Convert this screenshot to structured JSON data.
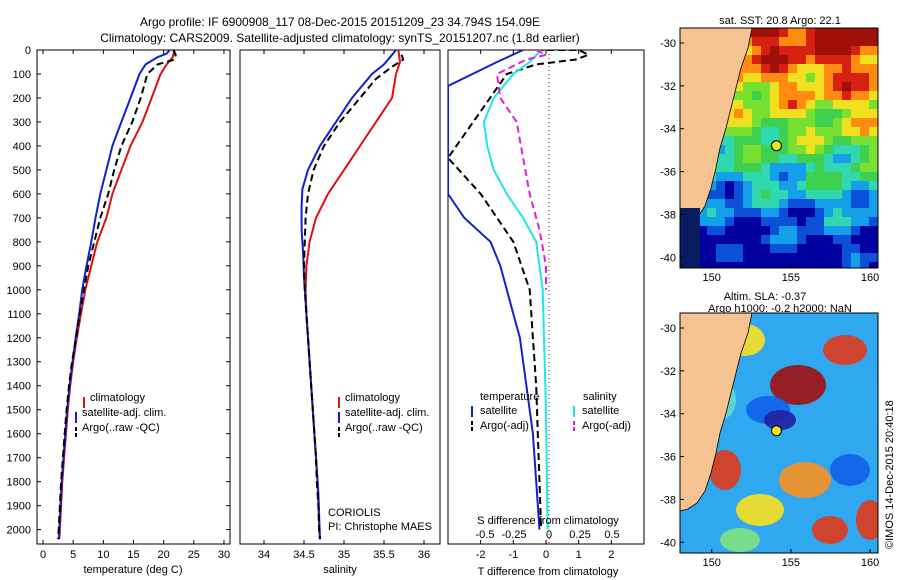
{
  "header": {
    "line1": "Argo profile: IF 6900908_117 08-Dec-2015 20151209_23 34.794S 154.09E",
    "line2": "Climatology: CARS2009. Satellite-adjusted climatology: synTS_20151207.nc (1.8d earlier)"
  },
  "colors": {
    "climatology": "#dd1111",
    "satellite": "#1122cc",
    "argo": "#000000",
    "sal_satellite": "#22e5e5",
    "sal_argo": "#e020e0",
    "land": "#f7c491",
    "marker": "#f0e020"
  },
  "depth_axis": {
    "ticks": [
      "0",
      "100",
      "200",
      "300",
      "400",
      "500",
      "600",
      "700",
      "800",
      "900",
      "1000",
      "1100",
      "1200",
      "1300",
      "1400",
      "1500",
      "1600",
      "1700",
      "1800",
      "1900",
      "2000"
    ]
  },
  "chart_data": [
    {
      "type": "line",
      "xlabel": "temperature (deg C)",
      "ylabel": "",
      "xlim": [
        -1,
        31
      ],
      "ylim": [
        2060,
        0
      ],
      "xticks": [
        "0",
        "5",
        "10",
        "15",
        "20",
        "25",
        "30"
      ],
      "legend": [
        "climatology",
        "satellite-adj. clim.",
        "Argo(..raw -QC)"
      ],
      "series": [
        {
          "name": "climatology",
          "color_key": "climatology",
          "dash": false,
          "points": [
            [
              21.8,
              0
            ],
            [
              21.5,
              30
            ],
            [
              20.5,
              60
            ],
            [
              19.5,
              100
            ],
            [
              18,
              200
            ],
            [
              16.5,
              300
            ],
            [
              14.5,
              400
            ],
            [
              13,
              500
            ],
            [
              11.5,
              600
            ],
            [
              10.5,
              700
            ],
            [
              9,
              800
            ],
            [
              8,
              900
            ],
            [
              7,
              1000
            ],
            [
              6.3,
              1100
            ],
            [
              5.6,
              1200
            ],
            [
              5,
              1300
            ],
            [
              4.5,
              1400
            ],
            [
              4.1,
              1500
            ],
            [
              3.8,
              1600
            ],
            [
              3.5,
              1700
            ],
            [
              3.2,
              1800
            ],
            [
              3,
              1900
            ],
            [
              2.8,
              2000
            ],
            [
              2.7,
              2040
            ]
          ]
        },
        {
          "name": "satellite-adj. clim.",
          "color_key": "satellite",
          "dash": false,
          "points": [
            [
              21,
              0
            ],
            [
              20.5,
              15
            ],
            [
              19,
              30
            ],
            [
              17,
              60
            ],
            [
              16,
              100
            ],
            [
              14.5,
              200
            ],
            [
              13,
              300
            ],
            [
              11.5,
              400
            ],
            [
              10.5,
              500
            ],
            [
              9.5,
              600
            ],
            [
              8.7,
              700
            ],
            [
              8,
              800
            ],
            [
              7.2,
              900
            ],
            [
              6.5,
              1000
            ],
            [
              6,
              1100
            ],
            [
              5.4,
              1200
            ],
            [
              4.9,
              1300
            ],
            [
              4.4,
              1400
            ],
            [
              4,
              1500
            ],
            [
              3.7,
              1600
            ],
            [
              3.4,
              1700
            ],
            [
              3.1,
              1800
            ],
            [
              2.9,
              1900
            ],
            [
              2.7,
              2000
            ],
            [
              2.6,
              2040
            ]
          ]
        },
        {
          "name": "Argo(..raw -QC)",
          "color_key": "argo",
          "dash": true,
          "points": [
            [
              21.6,
              0
            ],
            [
              22,
              20
            ],
            [
              21.8,
              40
            ],
            [
              19,
              60
            ],
            [
              17.3,
              100
            ],
            [
              16.2,
              200
            ],
            [
              14.8,
              300
            ],
            [
              13,
              400
            ],
            [
              11.8,
              500
            ],
            [
              10.8,
              600
            ],
            [
              9.5,
              700
            ],
            [
              8.5,
              800
            ],
            [
              7.5,
              900
            ],
            [
              6.8,
              1000
            ],
            [
              6.1,
              1100
            ],
            [
              5.5,
              1200
            ],
            [
              4.8,
              1300
            ],
            [
              4.3,
              1400
            ],
            [
              3.9,
              1500
            ],
            [
              3.6,
              1600
            ],
            [
              3.3,
              1700
            ],
            [
              3,
              1800
            ],
            [
              2.8,
              1900
            ],
            [
              2.6,
              2000
            ],
            [
              2.5,
              2040
            ]
          ]
        }
      ]
    },
    {
      "type": "line",
      "xlabel": "salinity",
      "ylabel": "",
      "xlim": [
        33.7,
        36.2
      ],
      "ylim": [
        2060,
        0
      ],
      "xticks": [
        "34",
        "34.5",
        "35",
        "35.5",
        "36"
      ],
      "legend": [
        "climatology",
        "satellite-adj. clim.",
        "Argo(..raw -QC)"
      ],
      "annotation": [
        "CORIOLIS",
        "PI: Christophe MAES"
      ],
      "series": [
        {
          "name": "climatology",
          "color_key": "climatology",
          "dash": false,
          "points": [
            [
              35.68,
              0
            ],
            [
              35.7,
              50
            ],
            [
              35.65,
              100
            ],
            [
              35.6,
              200
            ],
            [
              35.4,
              300
            ],
            [
              35.2,
              400
            ],
            [
              35,
              500
            ],
            [
              34.8,
              600
            ],
            [
              34.65,
              700
            ],
            [
              34.57,
              800
            ],
            [
              34.53,
              900
            ],
            [
              34.52,
              1000
            ],
            [
              34.53,
              1100
            ],
            [
              34.55,
              1200
            ],
            [
              34.57,
              1300
            ],
            [
              34.59,
              1400
            ],
            [
              34.61,
              1500
            ],
            [
              34.63,
              1600
            ],
            [
              34.65,
              1700
            ],
            [
              34.67,
              1800
            ],
            [
              34.68,
              1900
            ],
            [
              34.69,
              2000
            ],
            [
              34.7,
              2040
            ]
          ]
        },
        {
          "name": "satellite-adj. clim.",
          "color_key": "satellite",
          "dash": false,
          "points": [
            [
              35.65,
              0
            ],
            [
              35.6,
              20
            ],
            [
              35.5,
              60
            ],
            [
              35.35,
              100
            ],
            [
              35.1,
              200
            ],
            [
              34.9,
              300
            ],
            [
              34.7,
              400
            ],
            [
              34.55,
              500
            ],
            [
              34.48,
              580
            ],
            [
              34.47,
              650
            ],
            [
              34.47,
              750
            ],
            [
              34.49,
              850
            ],
            [
              34.5,
              950
            ],
            [
              34.52,
              1050
            ],
            [
              34.54,
              1150
            ],
            [
              34.56,
              1250
            ],
            [
              34.58,
              1350
            ],
            [
              34.6,
              1450
            ],
            [
              34.62,
              1550
            ],
            [
              34.64,
              1650
            ],
            [
              34.66,
              1750
            ],
            [
              34.68,
              1850
            ],
            [
              34.69,
              1950
            ],
            [
              34.7,
              2040
            ]
          ]
        },
        {
          "name": "Argo(..raw -QC)",
          "color_key": "argo",
          "dash": true,
          "points": [
            [
              35.72,
              20
            ],
            [
              35.74,
              40
            ],
            [
              35.6,
              70
            ],
            [
              35.4,
              120
            ],
            [
              35.2,
              200
            ],
            [
              34.95,
              300
            ],
            [
              34.75,
              400
            ],
            [
              34.62,
              500
            ],
            [
              34.55,
              600
            ],
            [
              34.52,
              700
            ],
            [
              34.51,
              800
            ],
            [
              34.5,
              900
            ],
            [
              34.51,
              1000
            ],
            [
              34.53,
              1100
            ],
            [
              34.55,
              1200
            ],
            [
              34.57,
              1300
            ],
            [
              34.59,
              1400
            ],
            [
              34.61,
              1500
            ],
            [
              34.63,
              1600
            ],
            [
              34.65,
              1700
            ],
            [
              34.66,
              1800
            ],
            [
              34.68,
              1900
            ],
            [
              34.69,
              2000
            ],
            [
              34.7,
              2040
            ]
          ]
        }
      ]
    },
    {
      "type": "line",
      "xlabel": "T difference from climatology",
      "xlabel2": "S difference from climatology",
      "ylabel": "",
      "xlim": [
        -3,
        3
      ],
      "ylim": [
        2060,
        0
      ],
      "xticks": [
        "-2",
        "-1",
        "0",
        "1",
        "2"
      ],
      "xticks_s": [
        "-0.5",
        "-0.25",
        "0",
        "0.25",
        "0.5"
      ],
      "legend_groups": [
        "temperature",
        "salinity"
      ],
      "legend": [
        "satellite",
        "Argo(-adj)",
        "satellite",
        "Argo(-adj)"
      ],
      "series": [
        {
          "name": "satellite",
          "group": "temperature",
          "color_key": "satellite",
          "dash": false,
          "points": [
            [
              -0.7,
              0
            ],
            [
              -1.5,
              50
            ],
            [
              -3,
              150
            ],
            [
              -3,
              600
            ],
            [
              -2.5,
              700
            ],
            [
              -1.7,
              800
            ],
            [
              -1.4,
              900
            ],
            [
              -1.2,
              1000
            ],
            [
              -1,
              1100
            ],
            [
              -0.8,
              1200
            ],
            [
              -0.6,
              1400
            ],
            [
              -0.4,
              1600
            ],
            [
              -0.3,
              1800
            ],
            [
              -0.2,
              2000
            ]
          ]
        },
        {
          "name": "Argo(-adj)",
          "group": "temperature",
          "color_key": "argo",
          "dash": true,
          "points": [
            [
              -0.3,
              0
            ],
            [
              1,
              0
            ],
            [
              1.3,
              20
            ],
            [
              0.9,
              40
            ],
            [
              -0.3,
              60
            ],
            [
              -1.2,
              100
            ],
            [
              -3,
              450
            ],
            [
              -2,
              600
            ],
            [
              -1,
              800
            ],
            [
              -0.5,
              1000
            ],
            [
              -0.4,
              1200
            ],
            [
              -0.3,
              1400
            ],
            [
              -0.25,
              1600
            ],
            [
              -0.2,
              1800
            ],
            [
              -0.15,
              2000
            ]
          ]
        },
        {
          "name": "satellite",
          "group": "salinity",
          "color_key": "sal_satellite",
          "dash": false,
          "points": [
            [
              -0.15,
              0
            ],
            [
              -0.5,
              50
            ],
            [
              -1,
              100
            ],
            [
              -1.6,
              200
            ],
            [
              -1.9,
              300
            ],
            [
              -1.8,
              400
            ],
            [
              -1.6,
              500
            ],
            [
              -1.2,
              600
            ],
            [
              -0.7,
              700
            ],
            [
              -0.3,
              800
            ],
            [
              -0.1,
              1000
            ],
            [
              0,
              1500
            ],
            [
              0.05,
              2000
            ]
          ]
        },
        {
          "name": "Argo(-adj)",
          "group": "salinity",
          "color_key": "sal_argo",
          "dash": true,
          "points": [
            [
              -0.3,
              0
            ],
            [
              0,
              20
            ],
            [
              -0.6,
              40
            ],
            [
              -1.5,
              100
            ],
            [
              -1.4,
              200
            ],
            [
              -0.9,
              300
            ],
            [
              -0.7,
              450
            ],
            [
              -0.5,
              600
            ],
            [
              -0.2,
              750
            ],
            [
              0,
              900
            ],
            [
              0,
              1000
            ]
          ]
        }
      ]
    }
  ],
  "maps": [
    {
      "title": "sat. SST: 20.8  Argo: 22.1",
      "xticks": [
        "150",
        "155",
        "160"
      ],
      "yticks": [
        "-30",
        "-32",
        "-34",
        "-36",
        "-38",
        "-40"
      ],
      "xlim": [
        148,
        160.5
      ],
      "ylim": [
        -40.5,
        -29.3
      ],
      "float_position": [
        154.09,
        -34.794
      ],
      "palette": [
        "#0000a0",
        "#0a50d8",
        "#14a0e8",
        "#30d8b0",
        "#40d050",
        "#78e030",
        "#f0e020",
        "#ff8c10",
        "#d82010",
        "#a01008"
      ]
    },
    {
      "title_line1": "Altim. SLA: -0.37",
      "title_line2": "Argo h1000: -0.2  h2000: NaN",
      "xticks": [
        "150",
        "155",
        "160"
      ],
      "yticks": [
        "-30",
        "-32",
        "-34",
        "-36",
        "-38",
        "-40"
      ],
      "xlim": [
        148,
        160.5
      ],
      "ylim": [
        -40.5,
        -29.3
      ],
      "float_position": [
        154.09,
        -34.794
      ],
      "palette": [
        "#2020a0",
        "#1060e8",
        "#30a8f0",
        "#60d8d0",
        "#80e080",
        "#c8e850",
        "#f8e020",
        "#f89020",
        "#e03818",
        "#a01010"
      ]
    }
  ],
  "footer_stamp": "©IMOS 14-Dec-2015 20:40:18"
}
